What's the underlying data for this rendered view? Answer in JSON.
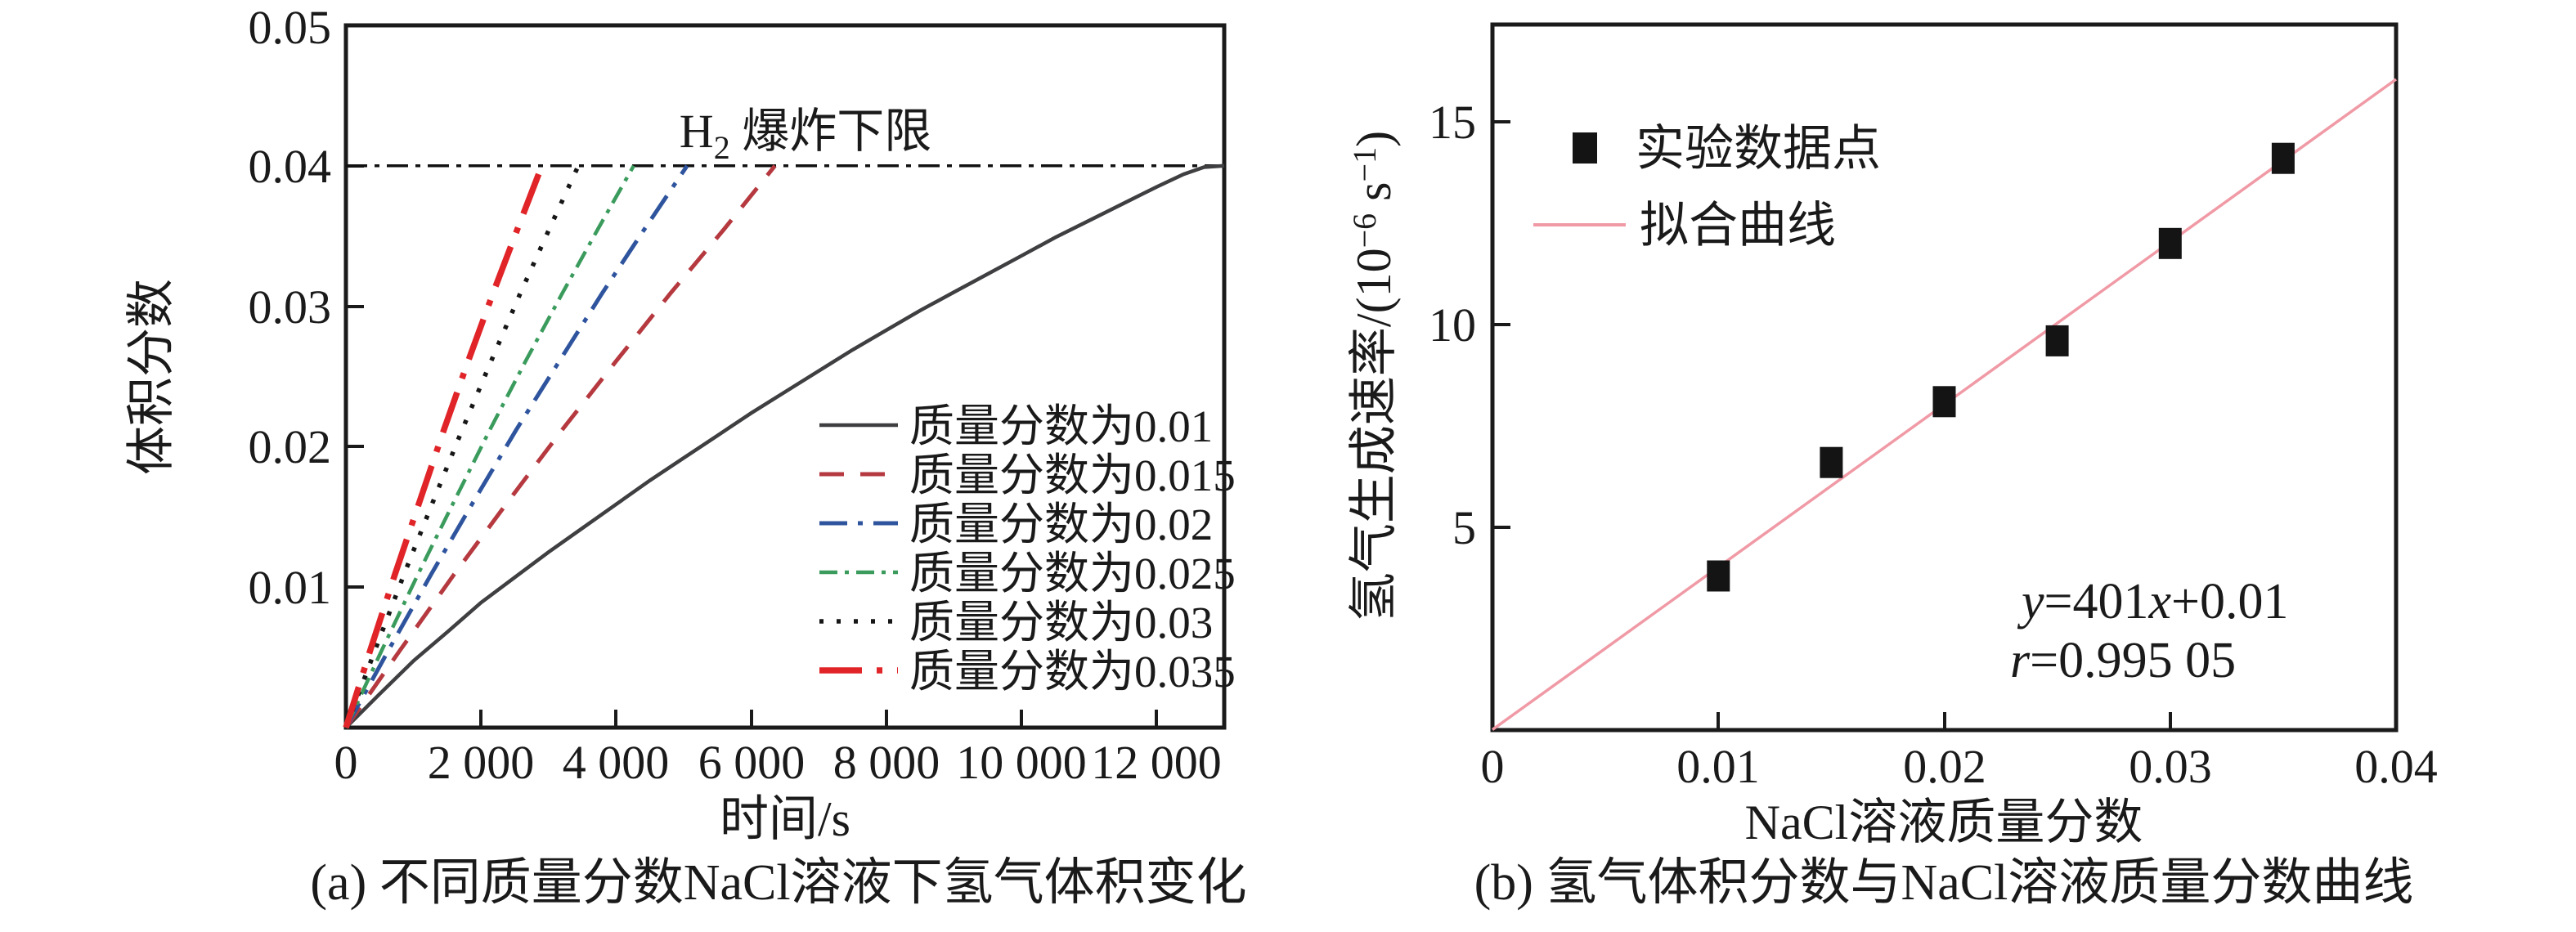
{
  "figure": {
    "panel_a": {
      "caption": "(a) 不同质量分数NaCl溶液下氢气体积变化",
      "xlabel": "时间/s",
      "ylabel": "体积分数",
      "x_tick_labels": [
        "0",
        "2 000",
        "4 000",
        "6 000",
        "8 000",
        "10 000",
        "12 000"
      ],
      "y_tick_labels": [
        "0.01",
        "0.02",
        "0.03",
        "0.04",
        "0.05"
      ],
      "limit_label_base": "H",
      "limit_label_sub": "2",
      "limit_label_rest": " 爆炸下限",
      "legend_labels": [
        "质量分数为0.01",
        "质量分数为0.015",
        "质量分数为0.02",
        "质量分数为0.025",
        "质量分数为0.03",
        "质量分数为0.035"
      ]
    },
    "panel_b": {
      "caption": "(b) 氢气体积分数与NaCl溶液质量分数曲线",
      "xlabel": "NaCl溶液质量分数",
      "ylabel_part1": "氢气生成速率/(10",
      "ylabel_sup1": "−6",
      "ylabel_part2": " s",
      "ylabel_sup2": "−1",
      "ylabel_part3": ")",
      "x_tick_labels": [
        "0",
        "0.01",
        "0.02",
        "0.03",
        "0.04"
      ],
      "y_tick_labels": [
        "5",
        "10",
        "15"
      ],
      "legend_point_label": "实验数据点",
      "legend_line_label": "拟合曲线",
      "annotation_y_var": "y",
      "annotation_eq": "=401",
      "annotation_x_var": "x",
      "annotation_tail": "+0.01",
      "annotation_r_var": "r",
      "annotation_r_val": "=0.995 05"
    }
  },
  "colors": {
    "axis": "#1a1a1a",
    "limit_line": "#111111",
    "fit_line": "#f09aa6",
    "marker": "#141414"
  },
  "chart_data": [
    {
      "type": "line",
      "title": "(a) 不同质量分数NaCl溶液下氢气体积变化",
      "xlabel": "时间/s",
      "ylabel": "体积分数",
      "xlim": [
        0,
        13000
      ],
      "ylim": [
        0,
        0.05
      ],
      "x_ticks": [
        0,
        2000,
        4000,
        6000,
        8000,
        10000,
        12000
      ],
      "y_ticks": [
        0.01,
        0.02,
        0.03,
        0.04,
        0.05
      ],
      "grid": false,
      "legend_position": "lower right inside",
      "h2_explosion_limit": {
        "y": 0.04,
        "label": "H2 爆炸下限",
        "style": "dashdot"
      },
      "series": [
        {
          "name": "质量分数为0.01",
          "style": "solid",
          "color": "#3f3f41",
          "points": [
            [
              0,
              0
            ],
            [
              500,
              0.0024
            ],
            [
              1000,
              0.00475
            ],
            [
              1500,
              0.0068
            ],
            [
              2000,
              0.0089
            ],
            [
              2500,
              0.0107
            ],
            [
              3000,
              0.0125
            ],
            [
              3500,
              0.0142
            ],
            [
              4000,
              0.0159
            ],
            [
              4500,
              0.0176
            ],
            [
              5000,
              0.0192
            ],
            [
              5500,
              0.0208
            ],
            [
              6000,
              0.0224
            ],
            [
              6500,
              0.0239
            ],
            [
              7000,
              0.0254
            ],
            [
              7500,
              0.0269
            ],
            [
              8000,
              0.0283
            ],
            [
              8500,
              0.0297
            ],
            [
              9000,
              0.031
            ],
            [
              9500,
              0.0323
            ],
            [
              10000,
              0.0336
            ],
            [
              10500,
              0.0349
            ],
            [
              11000,
              0.0361
            ],
            [
              11500,
              0.0373
            ],
            [
              12000,
              0.0385
            ],
            [
              12400,
              0.0394
            ],
            [
              12700,
              0.0399
            ],
            [
              13000,
              0.04
            ]
          ]
        },
        {
          "name": "质量分数为0.015",
          "style": "dashed",
          "color": "#b5393f",
          "points": [
            [
              0,
              0
            ],
            [
              800,
              0.0055
            ],
            [
              1600,
              0.0109
            ],
            [
              2400,
              0.0161
            ],
            [
              3200,
              0.0212
            ],
            [
              4000,
              0.0261
            ],
            [
              4800,
              0.0309
            ],
            [
              5600,
              0.0355
            ],
            [
              6350,
              0.04
            ]
          ]
        },
        {
          "name": "质量分数为0.02",
          "style": "dashdot",
          "color": "#2f549e",
          "points": [
            [
              0,
              0
            ],
            [
              630,
              0.0055
            ],
            [
              1260,
              0.0109
            ],
            [
              1890,
              0.0161
            ],
            [
              2520,
              0.0212
            ],
            [
              3160,
              0.0261
            ],
            [
              3790,
              0.0309
            ],
            [
              4420,
              0.0355
            ],
            [
              5050,
              0.04
            ]
          ]
        },
        {
          "name": "质量分数为0.025",
          "style": "dashdotdot",
          "color": "#3a9b5c",
          "points": [
            [
              0,
              0
            ],
            [
              530,
              0.0055
            ],
            [
              1065,
              0.0109
            ],
            [
              1600,
              0.0161
            ],
            [
              2130,
              0.0212
            ],
            [
              2660,
              0.0261
            ],
            [
              3200,
              0.0309
            ],
            [
              3730,
              0.0355
            ],
            [
              4260,
              0.04
            ]
          ]
        },
        {
          "name": "质量分数为0.03",
          "style": "dotted",
          "color": "#161616",
          "points": [
            [
              0,
              0
            ],
            [
              430,
              0.0055
            ],
            [
              860,
              0.0109
            ],
            [
              1290,
              0.0161
            ],
            [
              1720,
              0.0212
            ],
            [
              2150,
              0.0261
            ],
            [
              2580,
              0.0309
            ],
            [
              3010,
              0.0355
            ],
            [
              3440,
              0.04
            ]
          ]
        },
        {
          "name": "质量分数为0.035",
          "style": "longdashdot",
          "color": "#e02428",
          "points": [
            [
              0,
              0
            ],
            [
              360,
              0.0055
            ],
            [
              725,
              0.0109
            ],
            [
              1090,
              0.0161
            ],
            [
              1450,
              0.0212
            ],
            [
              1810,
              0.0261
            ],
            [
              2175,
              0.0309
            ],
            [
              2540,
              0.0355
            ],
            [
              2900,
              0.04
            ]
          ]
        }
      ]
    },
    {
      "type": "scatter",
      "title": "(b) 氢气体积分数与NaCl溶液质量分数曲线",
      "xlabel": "NaCl溶液质量分数",
      "ylabel": "氢气生成速率/(10−6 s−1)",
      "xlim": [
        0,
        0.04
      ],
      "ylim": [
        0,
        17.4
      ],
      "x_ticks": [
        0,
        0.01,
        0.02,
        0.03,
        0.04
      ],
      "y_ticks": [
        5,
        10,
        15
      ],
      "grid": false,
      "legend_position": "upper left inside",
      "points": {
        "x": [
          0.01,
          0.015,
          0.02,
          0.025,
          0.03,
          0.035
        ],
        "y": [
          3.8,
          6.6,
          8.1,
          9.6,
          12.0,
          14.1
        ]
      },
      "fit": {
        "equation": "y=401x+0.01",
        "r": "0.995 05",
        "slope": 401,
        "intercept": 0.01,
        "color": "#f09aa6"
      },
      "legend": [
        "实验数据点",
        "拟合曲线"
      ]
    }
  ]
}
